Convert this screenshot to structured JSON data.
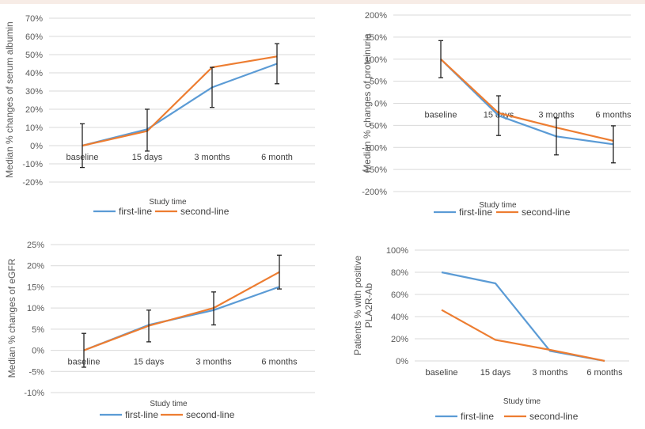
{
  "colors": {
    "first_line": "#5b9bd5",
    "second_line": "#ed7d31",
    "grid": "#d9d9d9",
    "error_bar": "#222222"
  },
  "chart_data": [
    {
      "type": "line",
      "title": "",
      "xlabel": "Study time",
      "ylabel": "Median % changes of serum albumin",
      "categories": [
        "baseline",
        "15 days",
        "3 months",
        "6 month"
      ],
      "yticks": [
        "70%",
        "60%",
        "50%",
        "40%",
        "30%",
        "20%",
        "10%",
        "0%",
        "-10%",
        "-20%"
      ],
      "ylim": [
        -20,
        70
      ],
      "grid": true,
      "legend": "bottom",
      "series": [
        {
          "name": "first-line",
          "values": [
            0,
            9,
            32,
            45
          ],
          "err_low": [
            12,
            12,
            11,
            11
          ],
          "err_high": [
            12,
            11,
            11,
            11
          ]
        },
        {
          "name": "second-line",
          "values": [
            0,
            8,
            43,
            49
          ],
          "err_low": [
            0,
            0,
            0,
            0
          ],
          "err_high": [
            0,
            0,
            0,
            0
          ]
        }
      ]
    },
    {
      "type": "line",
      "title": "",
      "xlabel": "Study time",
      "ylabel": "Median % changes of proteinuria",
      "categories": [
        "baseline",
        "15 days",
        "3 months",
        "6 months"
      ],
      "yticks": [
        "200%",
        "150%",
        "100%",
        "50%",
        "0%",
        "-50%",
        "-100%",
        "-150%",
        "-200%"
      ],
      "ylim": [
        -200,
        200
      ],
      "grid": true,
      "legend": "bottom",
      "series": [
        {
          "name": "first-line",
          "values": [
            100,
            -28,
            -75,
            -93
          ],
          "err_low": [
            42,
            45,
            42,
            42
          ],
          "err_high": [
            42,
            45,
            42,
            42
          ]
        },
        {
          "name": "second-line",
          "values": [
            100,
            -22,
            -55,
            -85
          ],
          "err_low": [
            0,
            0,
            0,
            0
          ],
          "err_high": [
            0,
            0,
            0,
            0
          ]
        }
      ]
    },
    {
      "type": "line",
      "title": "",
      "xlabel": "Study time",
      "ylabel": "Median % changes of eGFR",
      "categories": [
        "baseline",
        "15 days",
        "3 months",
        "6 months"
      ],
      "yticks": [
        "25%",
        "20%",
        "15%",
        "10%",
        "5%",
        "0%",
        "-5%",
        "-10%"
      ],
      "ylim": [
        -10,
        25
      ],
      "grid": true,
      "legend": "bottom",
      "series": [
        {
          "name": "first-line",
          "values": [
            0,
            6,
            9.5,
            15
          ],
          "err_low": [
            4,
            4,
            3.5,
            0
          ],
          "err_high": [
            4,
            3.5,
            4.3,
            0
          ]
        },
        {
          "name": "second-line",
          "values": [
            0,
            5.8,
            10,
            18.5
          ],
          "err_low": [
            0,
            0,
            0,
            4
          ],
          "err_high": [
            0,
            0,
            0,
            4
          ]
        }
      ]
    },
    {
      "type": "line",
      "title": "",
      "xlabel": "Study time",
      "ylabel": "Patients % with  positive PLA2R-Ab",
      "ylabel_lines": [
        "Patients % with  positive",
        "PLA2R-Ab"
      ],
      "categories": [
        "baseline",
        "15 days",
        "3 months",
        "6 months"
      ],
      "yticks": [
        "100%",
        "80%",
        "60%",
        "40%",
        "20%",
        "0%"
      ],
      "ylim": [
        0,
        100
      ],
      "grid": true,
      "legend": "bottom",
      "series": [
        {
          "name": "first-line",
          "values": [
            80,
            70,
            9,
            0
          ]
        },
        {
          "name": "second-line",
          "values": [
            46,
            19,
            10,
            0
          ]
        }
      ]
    }
  ]
}
